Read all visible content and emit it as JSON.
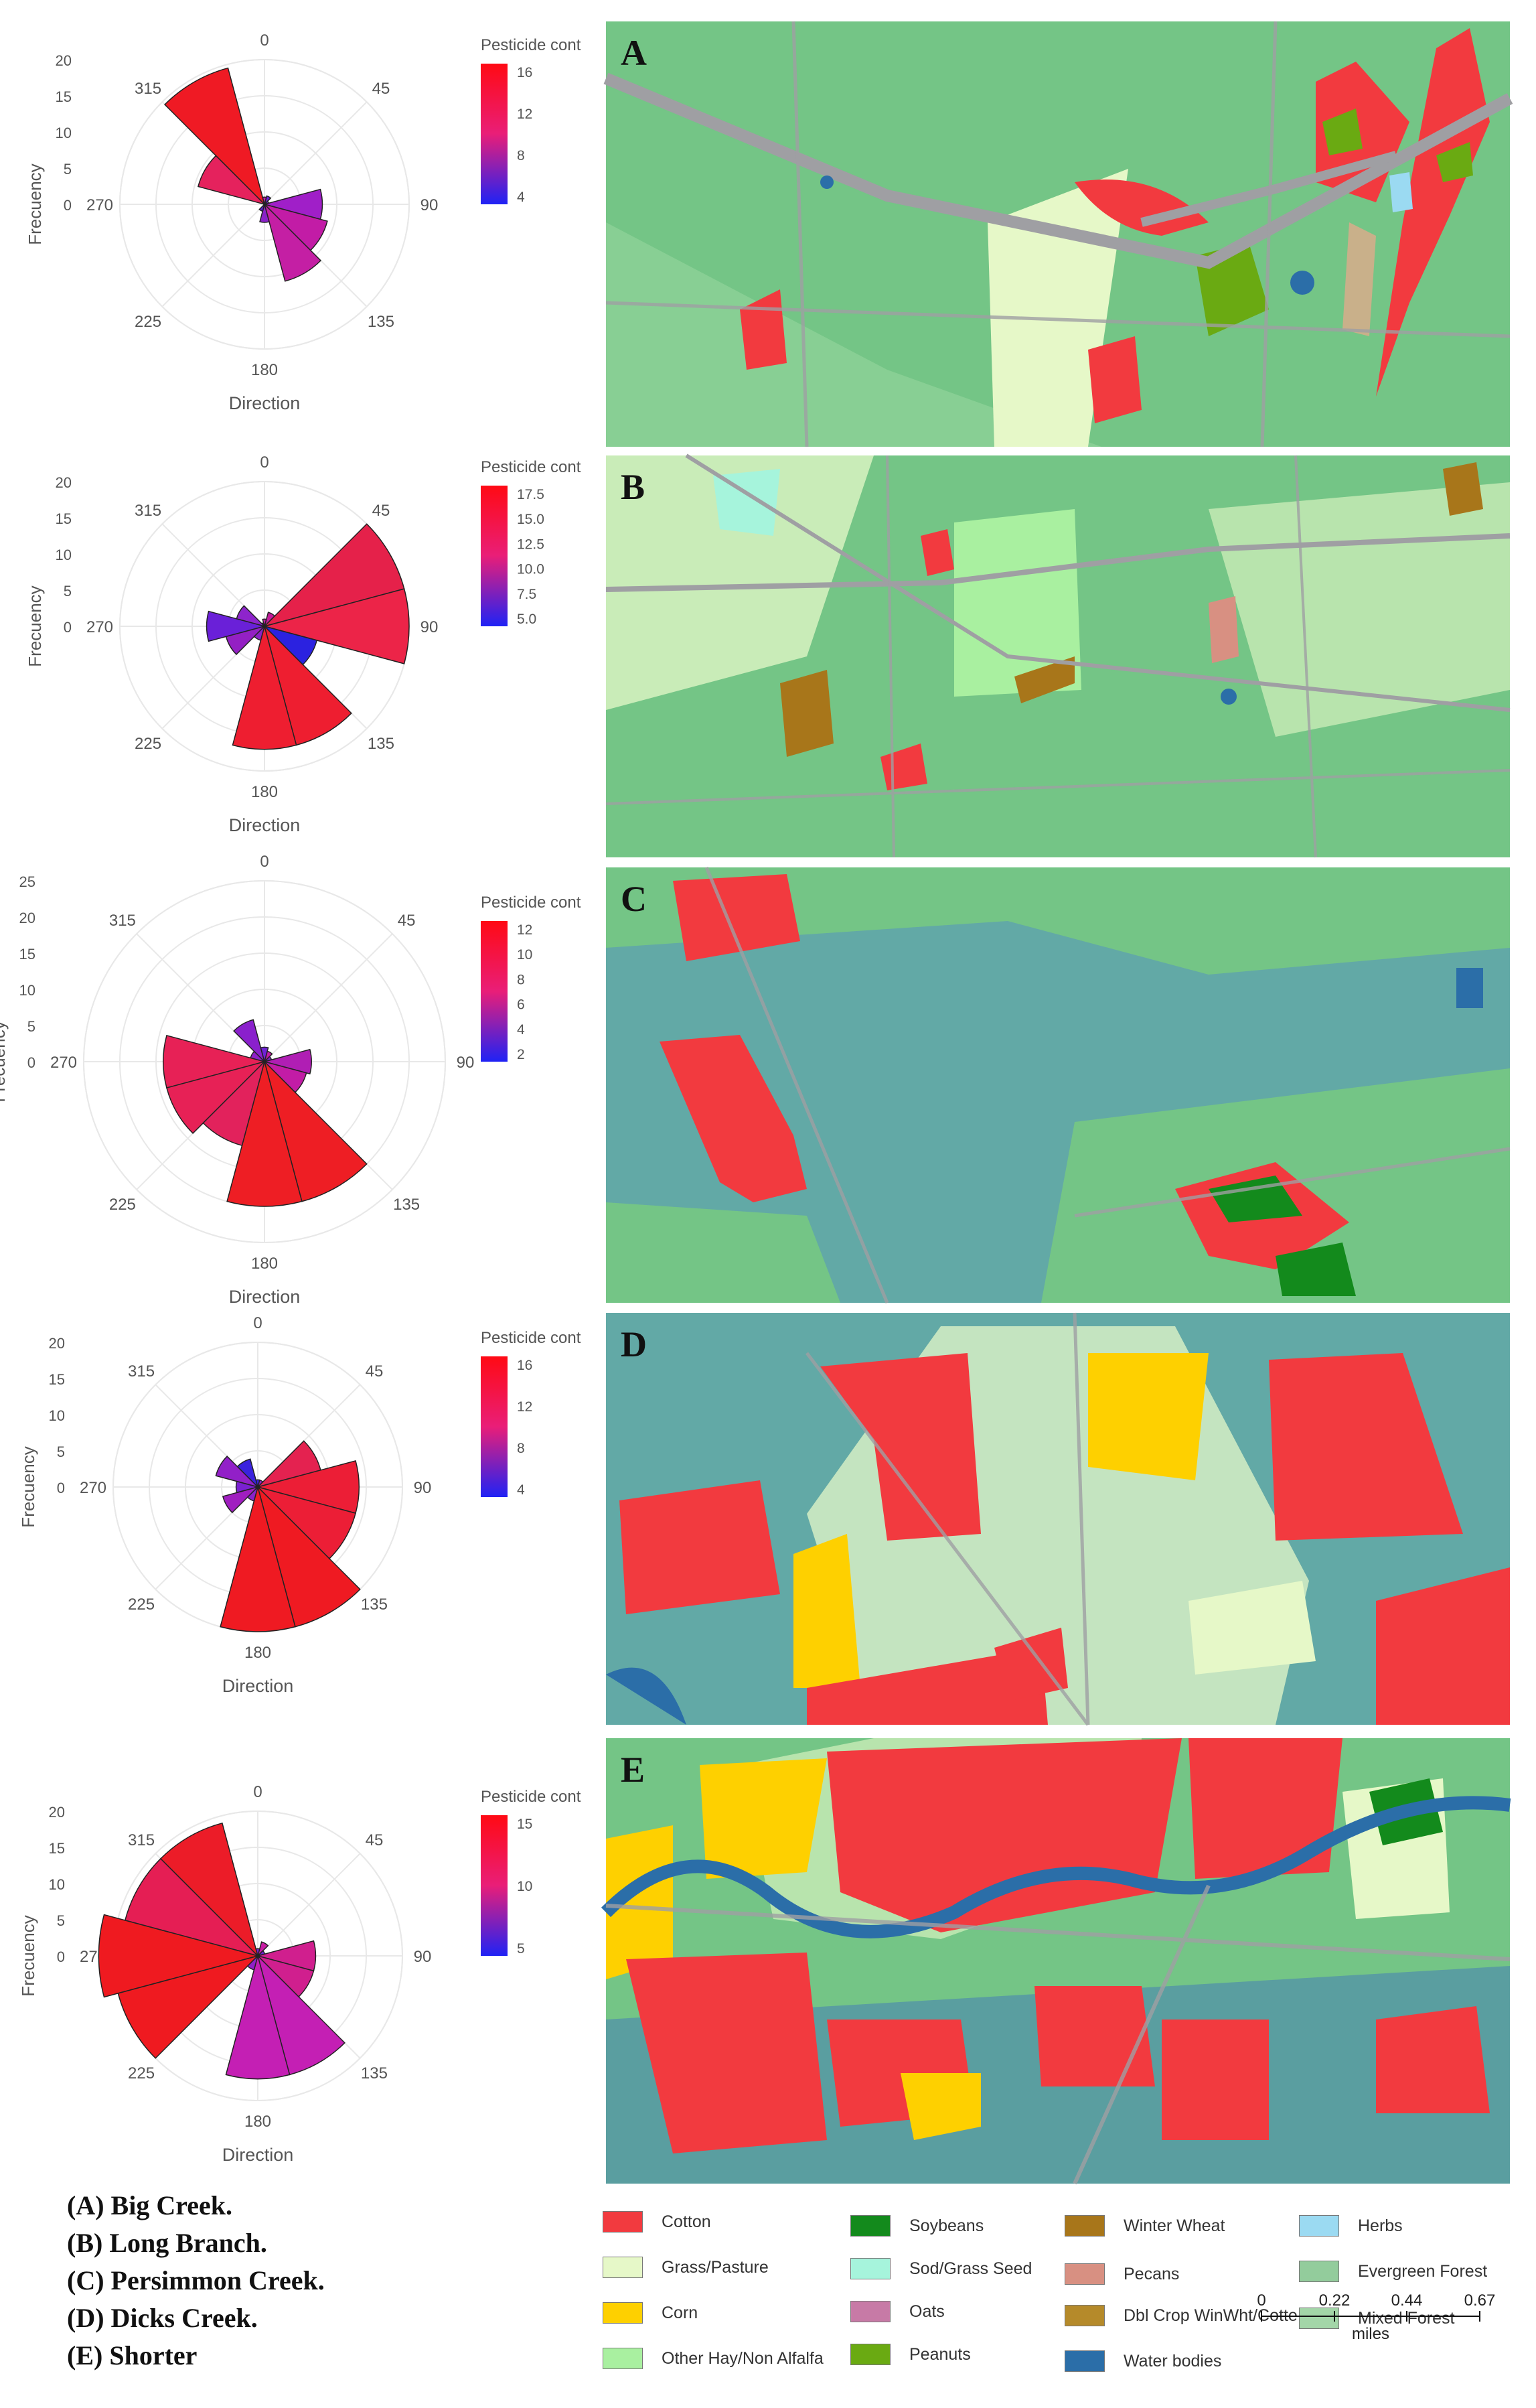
{
  "panels": [
    {
      "id": "A",
      "name": "Big Creek",
      "cb_labels": [
        "16",
        "12",
        "8",
        "4"
      ],
      "cb_title": "Pesticide cont",
      "r_ticks": [
        "20",
        "15",
        "10",
        "5",
        "0"
      ],
      "sectors": [
        {
          "dir": -30,
          "freq": 19.5,
          "color": "#ef1a24"
        },
        {
          "dir": -60,
          "freq": 9.5,
          "color": "#e5225d"
        },
        {
          "dir": -90,
          "freq": 0,
          "color": "#d01f7e"
        },
        {
          "dir": -120,
          "freq": 0,
          "color": "#d01f7e"
        },
        {
          "dir": 30,
          "freq": 1.2,
          "color": "#7022d6"
        },
        {
          "dir": 60,
          "freq": 0.6,
          "color": "#6c20d0"
        },
        {
          "dir": 90,
          "freq": 8,
          "color": "#a01fc8"
        },
        {
          "dir": 120,
          "freq": 9,
          "color": "#c21ca6"
        },
        {
          "dir": 150,
          "freq": 11,
          "color": "#c41fa4"
        },
        {
          "dir": 180,
          "freq": 2.5,
          "color": "#8a22c8"
        },
        {
          "dir": 210,
          "freq": 1,
          "color": "#5a21d8"
        },
        {
          "dir": 0,
          "freq": 1,
          "color": "#c21ca6"
        }
      ]
    },
    {
      "id": "B",
      "name": "Long Branch",
      "cb_labels": [
        "17.5",
        "15.0",
        "12.5",
        "10.0",
        "7.5",
        "5.0"
      ],
      "cb_title": "Pesticide cont",
      "r_ticks": [
        "20",
        "15",
        "10",
        "5",
        "0"
      ],
      "sectors": [
        {
          "dir": -30,
          "freq": 0.5,
          "color": "#9a20c8"
        },
        {
          "dir": -60,
          "freq": 4,
          "color": "#8e24cc"
        },
        {
          "dir": -90,
          "freq": 8,
          "color": "#6a20d8"
        },
        {
          "dir": -120,
          "freq": 5.5,
          "color": "#9420c4"
        },
        {
          "dir": 30,
          "freq": 2,
          "color": "#c41c9c"
        },
        {
          "dir": 60,
          "freq": 20,
          "color": "#e5214a"
        },
        {
          "dir": 90,
          "freq": 20,
          "color": "#ec2448"
        },
        {
          "dir": 120,
          "freq": 7.5,
          "color": "#2b22e0"
        },
        {
          "dir": 150,
          "freq": 17,
          "color": "#ee1e30"
        },
        {
          "dir": 180,
          "freq": 17,
          "color": "#ee1e30"
        },
        {
          "dir": 210,
          "freq": 2,
          "color": "#8c22c6"
        },
        {
          "dir": 0,
          "freq": 1,
          "color": "#c21ca6"
        }
      ]
    },
    {
      "id": "C",
      "name": "Persimmon Creek",
      "cb_labels": [
        "12",
        "10",
        "8",
        "6",
        "4",
        "2"
      ],
      "cb_title": "Pesticide cont",
      "r_ticks": [
        "25",
        "20",
        "15",
        "10",
        "5",
        "0"
      ],
      "sectors": [
        {
          "dir": -30,
          "freq": 6,
          "color": "#8a20cc"
        },
        {
          "dir": -60,
          "freq": 2,
          "color": "#9020c8"
        },
        {
          "dir": -90,
          "freq": 14,
          "color": "#e72156"
        },
        {
          "dir": -120,
          "freq": 14,
          "color": "#e72156"
        },
        {
          "dir": 30,
          "freq": 1.5,
          "color": "#c21ca6"
        },
        {
          "dir": 60,
          "freq": 1,
          "color": "#7a22d0"
        },
        {
          "dir": 90,
          "freq": 6.5,
          "color": "#b01eb4"
        },
        {
          "dir": 120,
          "freq": 6,
          "color": "#c21ca6"
        },
        {
          "dir": 150,
          "freq": 20,
          "color": "#ee1e24"
        },
        {
          "dir": 180,
          "freq": 20,
          "color": "#ee1e24"
        },
        {
          "dir": 210,
          "freq": 12,
          "color": "#e2225c"
        },
        {
          "dir": 0,
          "freq": 2,
          "color": "#7022d6"
        }
      ]
    },
    {
      "id": "D",
      "name": "Dicks Creek",
      "cb_labels": [
        "16",
        "12",
        "8",
        "4"
      ],
      "cb_title": "Pesticide cont",
      "r_ticks": [
        "20",
        "15",
        "10",
        "5",
        "0"
      ],
      "sectors": [
        {
          "dir": -30,
          "freq": 4,
          "color": "#3a22de"
        },
        {
          "dir": -60,
          "freq": 6,
          "color": "#9220c8"
        },
        {
          "dir": -90,
          "freq": 3,
          "color": "#7a20d2"
        },
        {
          "dir": -120,
          "freq": 5,
          "color": "#a01ec0"
        },
        {
          "dir": 30,
          "freq": 1,
          "color": "#9020c8"
        },
        {
          "dir": 60,
          "freq": 9,
          "color": "#e42250"
        },
        {
          "dir": 90,
          "freq": 14,
          "color": "#ec1e36"
        },
        {
          "dir": 120,
          "freq": 14,
          "color": "#ec1e36"
        },
        {
          "dir": 150,
          "freq": 20,
          "color": "#ef1a22"
        },
        {
          "dir": 180,
          "freq": 20,
          "color": "#ef1a22"
        },
        {
          "dir": 210,
          "freq": 2,
          "color": "#8a22c8"
        },
        {
          "dir": 0,
          "freq": 1,
          "color": "#3a22de"
        }
      ]
    },
    {
      "id": "E",
      "name": "Shorter",
      "cb_labels": [
        "15",
        "10",
        "5"
      ],
      "cb_title": "Pesticide cont",
      "r_ticks": [
        "20",
        "15",
        "10",
        "5",
        "0"
      ],
      "sectors": [
        {
          "dir": -30,
          "freq": 19,
          "color": "#ec1c28"
        },
        {
          "dir": -60,
          "freq": 19,
          "color": "#e51e54"
        },
        {
          "dir": -90,
          "freq": 22,
          "color": "#ef1a20"
        },
        {
          "dir": -120,
          "freq": 20,
          "color": "#ef1a20"
        },
        {
          "dir": 30,
          "freq": 2,
          "color": "#c81ca4"
        },
        {
          "dir": 60,
          "freq": 1,
          "color": "#6e22d2"
        },
        {
          "dir": 90,
          "freq": 8,
          "color": "#d01f8e"
        },
        {
          "dir": 120,
          "freq": 8,
          "color": "#d01f8e"
        },
        {
          "dir": 150,
          "freq": 17,
          "color": "#c41fb4"
        },
        {
          "dir": 180,
          "freq": 17,
          "color": "#c41fb4"
        },
        {
          "dir": 210,
          "freq": 2,
          "color": "#9020c8"
        },
        {
          "dir": 0,
          "freq": 1,
          "color": "#7a20d0"
        }
      ]
    }
  ],
  "axis": {
    "angle_labels": [
      "0",
      "45",
      "90",
      "135",
      "180",
      "225",
      "270",
      "315"
    ],
    "xlabel": "Direction",
    "ylabel": "Frecuency"
  },
  "caption": [
    "(A)  Big Creek.",
    "(B)  Long Branch.",
    "(C)  Persimmon  Creek.",
    "(D)  Dicks  Creek.",
    "(E)  Shorter"
  ],
  "legend": {
    "items": [
      {
        "label": "Cotton",
        "color": "#f23a3f"
      },
      {
        "label": "Grass/Pasture",
        "color": "#e6f8c8"
      },
      {
        "label": "Corn",
        "color": "#fed000"
      },
      {
        "label": "Other Hay/Non Alfalfa",
        "color": "#a9f0a0"
      },
      {
        "label": "Soybeans",
        "color": "#138a1c"
      },
      {
        "label": "Sod/Grass Seed",
        "color": "#a6f4dc"
      },
      {
        "label": "Oats",
        "color": "#c77aa6"
      },
      {
        "label": "Peanuts",
        "color": "#6aaa12"
      },
      {
        "label": "Winter Wheat",
        "color": "#a8761a"
      },
      {
        "label": "Pecans",
        "color": "#d89082"
      },
      {
        "label": "Dbl Crop WinWht/Cotte",
        "color": "#b58a2a"
      },
      {
        "label": "Water bodies",
        "color": "#2b6ea8"
      },
      {
        "label": "Herbs",
        "color": "#9bdaf2"
      },
      {
        "label": "Evergreen Forest",
        "color": "#93cc9c"
      },
      {
        "label": "Mixed Forest",
        "color": "#a3d6a8"
      }
    ],
    "scale": {
      "ticks": [
        "0",
        "0.22",
        "0.44",
        "0.67"
      ],
      "unit": "miles"
    }
  },
  "colors": {
    "grass_bg": "#74c586",
    "road": "#9f9fa3",
    "teal_bg": "#62a9a6",
    "cb_top": "#ff0a14",
    "cb_mid": "#e91e78",
    "cb_bot": "#1f22f5"
  }
}
